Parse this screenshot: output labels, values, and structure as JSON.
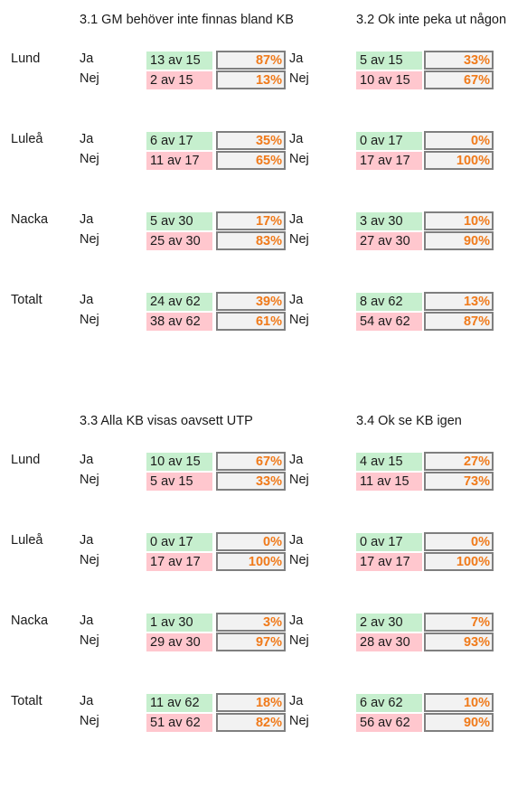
{
  "sections": [
    {
      "left_title": "3.1 GM behöver inte finnas bland KB",
      "right_title": "3.2 Ok inte peka ut någon",
      "groups": [
        {
          "location": "Lund",
          "ja": "Ja",
          "nej": "Nej",
          "left": {
            "ja_count": "13 av 15",
            "ja_pct": "87%",
            "nej_count": "2 av 15",
            "nej_pct": "13%"
          },
          "right": {
            "ja_count": "5 av 15",
            "ja_pct": "33%",
            "nej_count": "10 av 15",
            "nej_pct": "67%"
          }
        },
        {
          "location": "Luleå",
          "ja": "Ja",
          "nej": "Nej",
          "left": {
            "ja_count": "6 av 17",
            "ja_pct": "35%",
            "nej_count": "11 av 17",
            "nej_pct": "65%"
          },
          "right": {
            "ja_count": "0 av 17",
            "ja_pct": "0%",
            "nej_count": "17 av 17",
            "nej_pct": "100%"
          }
        },
        {
          "location": "Nacka",
          "ja": "Ja",
          "nej": "Nej",
          "left": {
            "ja_count": "5 av 30",
            "ja_pct": "17%",
            "nej_count": "25 av 30",
            "nej_pct": "83%"
          },
          "right": {
            "ja_count": "3 av 30",
            "ja_pct": "10%",
            "nej_count": "27 av 30",
            "nej_pct": "90%"
          }
        },
        {
          "location": "Totalt",
          "ja": "Ja",
          "nej": "Nej",
          "left": {
            "ja_count": "24 av 62",
            "ja_pct": "39%",
            "nej_count": "38 av 62",
            "nej_pct": "61%"
          },
          "right": {
            "ja_count": "8 av 62",
            "ja_pct": "13%",
            "nej_count": "54 av 62",
            "nej_pct": "87%"
          }
        }
      ]
    },
    {
      "left_title": "3.3 Alla KB visas oavsett UTP",
      "right_title": "3.4 Ok se KB igen",
      "groups": [
        {
          "location": "Lund",
          "ja": "Ja",
          "nej": "Nej",
          "left": {
            "ja_count": "10 av 15",
            "ja_pct": "67%",
            "nej_count": "5 av 15",
            "nej_pct": "33%"
          },
          "right": {
            "ja_count": "4 av 15",
            "ja_pct": "27%",
            "nej_count": "11 av 15",
            "nej_pct": "73%"
          }
        },
        {
          "location": "Luleå",
          "ja": "Ja",
          "nej": "Nej",
          "left": {
            "ja_count": "0 av 17",
            "ja_pct": "0%",
            "nej_count": "17 av 17",
            "nej_pct": "100%"
          },
          "right": {
            "ja_count": "0 av 17",
            "ja_pct": "0%",
            "nej_count": "17 av 17",
            "nej_pct": "100%"
          }
        },
        {
          "location": "Nacka",
          "ja": "Ja",
          "nej": "Nej",
          "left": {
            "ja_count": "1 av 30",
            "ja_pct": "3%",
            "nej_count": "29 av 30",
            "nej_pct": "97%"
          },
          "right": {
            "ja_count": "2 av 30",
            "ja_pct": "7%",
            "nej_count": "28 av 30",
            "nej_pct": "93%"
          }
        },
        {
          "location": "Totalt",
          "ja": "Ja",
          "nej": "Nej",
          "left": {
            "ja_count": "11 av 62",
            "ja_pct": "18%",
            "nej_count": "51 av 62",
            "nej_pct": "82%"
          },
          "right": {
            "ja_count": "6 av 62",
            "ja_pct": "10%",
            "nej_count": "56 av 62",
            "nej_pct": "90%"
          }
        }
      ]
    }
  ]
}
